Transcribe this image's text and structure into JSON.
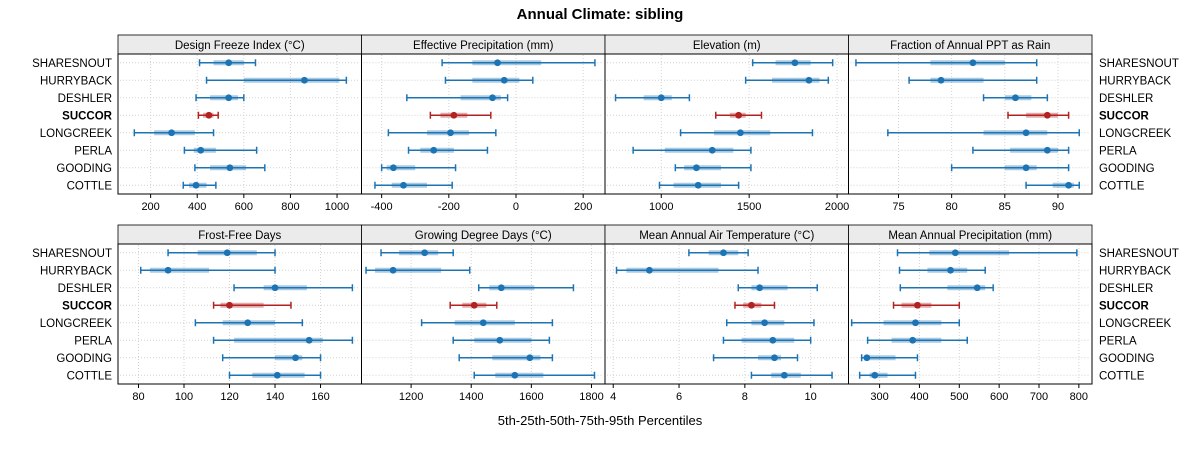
{
  "title": "Annual Climate: sibling",
  "caption": "5th-25th-50th-75th-95th Percentiles",
  "colors": {
    "series": "#1c74b4",
    "highlight": "#b22222",
    "strip_bg": "#ebebeb",
    "grid": "#d2d2d2",
    "border": "#000000",
    "text": "#000000"
  },
  "chart_data": {
    "type": "scatter",
    "subtype": "trellis-percentile-dotplot",
    "title": "Annual Climate: sibling",
    "xlabel": "5th-25th-50th-75th-95th Percentiles",
    "grid": "dotted",
    "legend_position": "none",
    "percentiles": [
      5,
      25,
      50,
      75,
      95
    ],
    "sites": [
      "SHARESNOUT",
      "HURRYBACK",
      "DESHLER",
      "SUCCOR",
      "LONGCREEK",
      "PERLA",
      "GOODING",
      "COTTLE"
    ],
    "highlighted_site": "SUCCOR",
    "panels": [
      {
        "title": "Design Freeze Index (°C)",
        "ticks": [
          200,
          400,
          600,
          800,
          1000
        ],
        "xlim": [
          60,
          1105
        ],
        "values": [
          [
            410,
            470,
            535,
            600,
            650
          ],
          [
            440,
            600,
            860,
            1010,
            1040
          ],
          [
            395,
            455,
            535,
            575,
            600
          ],
          [
            405,
            425,
            450,
            470,
            490
          ],
          [
            130,
            215,
            290,
            390,
            470
          ],
          [
            345,
            385,
            415,
            480,
            655
          ],
          [
            390,
            455,
            540,
            610,
            690
          ],
          [
            340,
            365,
            395,
            440,
            480
          ]
        ]
      },
      {
        "title": "Effective Precipitation (mm)",
        "ticks": [
          -400,
          -200,
          0,
          200
        ],
        "xlim": [
          -460,
          265
        ],
        "values": [
          [
            -220,
            -130,
            -55,
            75,
            235
          ],
          [
            -210,
            -130,
            -35,
            10,
            50
          ],
          [
            -325,
            -165,
            -70,
            -45,
            -25
          ],
          [
            -255,
            -225,
            -185,
            -145,
            -75
          ],
          [
            -380,
            -265,
            -195,
            -140,
            -60
          ],
          [
            -320,
            -285,
            -245,
            -185,
            -85
          ],
          [
            -400,
            -385,
            -365,
            -300,
            -180
          ],
          [
            -420,
            -370,
            -335,
            -265,
            -190
          ]
        ]
      },
      {
        "title": "Elevation (m)",
        "ticks": [
          1000,
          1500,
          2000
        ],
        "xlim": [
          680,
          2065
        ],
        "values": [
          [
            1520,
            1650,
            1760,
            1850,
            1975
          ],
          [
            1480,
            1630,
            1840,
            1900,
            1950
          ],
          [
            740,
            900,
            1000,
            1060,
            1160
          ],
          [
            1310,
            1390,
            1440,
            1480,
            1570
          ],
          [
            1110,
            1300,
            1450,
            1620,
            1860
          ],
          [
            840,
            1020,
            1290,
            1410,
            1510
          ],
          [
            1080,
            1130,
            1200,
            1340,
            1510
          ],
          [
            990,
            1070,
            1210,
            1340,
            1440
          ]
        ]
      },
      {
        "title": "Fraction of Annual PPT as Rain",
        "ticks": [
          75,
          80,
          85,
          90
        ],
        "xlim": [
          70.3,
          93.2
        ],
        "values": [
          [
            71,
            78,
            82,
            85,
            88
          ],
          [
            76,
            78,
            79,
            83,
            88
          ],
          [
            83,
            85,
            86,
            87.5,
            89
          ],
          [
            85.3,
            87,
            89,
            90,
            91
          ],
          [
            74,
            83,
            87,
            89,
            92
          ],
          [
            82,
            85.5,
            89,
            90,
            91
          ],
          [
            80,
            85,
            87,
            88,
            91
          ],
          [
            87,
            89.5,
            91,
            91.5,
            92
          ]
        ]
      },
      {
        "title": "Frost-Free Days",
        "ticks": [
          80,
          100,
          120,
          140,
          160
        ],
        "xlim": [
          71,
          178
        ],
        "values": [
          [
            93,
            106,
            119,
            132,
            140
          ],
          [
            81,
            85,
            93,
            111,
            140
          ],
          [
            122,
            135,
            140,
            154,
            174
          ],
          [
            113,
            116,
            120,
            135,
            147
          ],
          [
            105,
            117,
            128,
            140,
            152
          ],
          [
            113,
            122,
            155,
            161,
            174
          ],
          [
            117,
            140,
            149,
            152,
            160
          ],
          [
            120,
            130,
            141,
            153,
            160
          ]
        ]
      },
      {
        "title": "Growing Degree Days (°C)",
        "ticks": [
          1200,
          1400,
          1600,
          1800
        ],
        "xlim": [
          1035,
          1845
        ],
        "values": [
          [
            1100,
            1160,
            1245,
            1290,
            1340
          ],
          [
            1050,
            1080,
            1140,
            1300,
            1395
          ],
          [
            1425,
            1460,
            1500,
            1610,
            1740
          ],
          [
            1330,
            1370,
            1410,
            1450,
            1485
          ],
          [
            1235,
            1345,
            1440,
            1545,
            1670
          ],
          [
            1340,
            1410,
            1495,
            1600,
            1660
          ],
          [
            1360,
            1470,
            1595,
            1630,
            1670
          ],
          [
            1410,
            1480,
            1545,
            1640,
            1810
          ]
        ]
      },
      {
        "title": "Mean Annual Air Temperature (°C)",
        "ticks": [
          4,
          6,
          8,
          10
        ],
        "xlim": [
          3.75,
          11.15
        ],
        "values": [
          [
            6.3,
            6.9,
            7.35,
            7.8,
            8.1
          ],
          [
            4.1,
            4.4,
            5.1,
            7.2,
            8.4
          ],
          [
            7.8,
            8.2,
            8.45,
            9.3,
            10.2
          ],
          [
            7.7,
            7.95,
            8.2,
            8.5,
            8.9
          ],
          [
            7.45,
            8.2,
            8.6,
            9.2,
            10.1
          ],
          [
            7.35,
            7.9,
            8.85,
            9.5,
            10.0
          ],
          [
            7.05,
            8.4,
            8.9,
            9.1,
            9.6
          ],
          [
            8.2,
            8.8,
            9.2,
            9.7,
            10.65
          ]
        ]
      },
      {
        "title": "Mean Annual Precipitation (mm)",
        "ticks": [
          300,
          400,
          500,
          600,
          700,
          800
        ],
        "xlim": [
          222,
          833
        ],
        "values": [
          [
            345,
            425,
            490,
            625,
            795
          ],
          [
            350,
            420,
            478,
            520,
            565
          ],
          [
            352,
            470,
            545,
            565,
            585
          ],
          [
            335,
            355,
            395,
            430,
            500
          ],
          [
            230,
            310,
            390,
            455,
            500
          ],
          [
            270,
            330,
            383,
            455,
            520
          ],
          [
            255,
            262,
            268,
            340,
            395
          ],
          [
            250,
            275,
            288,
            320,
            390
          ]
        ]
      }
    ]
  }
}
